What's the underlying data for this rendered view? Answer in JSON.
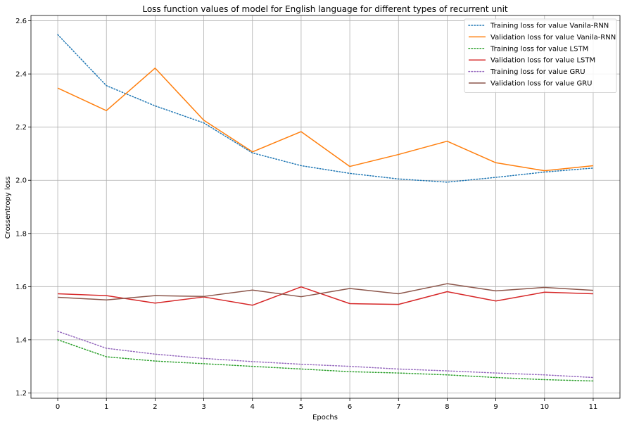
{
  "chart_data": {
    "type": "line",
    "title": "Loss function values of model for English language for different types of recurrent unit",
    "xlabel": "Epochs",
    "ylabel": "Crossentropy loss",
    "x": [
      0,
      1,
      2,
      3,
      4,
      5,
      6,
      7,
      8,
      9,
      10,
      11
    ],
    "xticks": [
      "0",
      "1",
      "2",
      "3",
      "4",
      "5",
      "6",
      "7",
      "8",
      "9",
      "10",
      "11"
    ],
    "yticks": [
      "1.2",
      "1.4",
      "1.6",
      "1.8",
      "2.0",
      "2.2",
      "2.4",
      "2.6"
    ],
    "xlim": [
      -0.55,
      11.55
    ],
    "ylim": [
      1.18,
      2.62
    ],
    "grid": true,
    "legend_position": "top-right",
    "series": [
      {
        "name": "Training loss for value Vanila-RNN",
        "color": "#1f77b4",
        "dash": "dotted",
        "values": [
          2.548,
          2.356,
          2.28,
          2.216,
          2.103,
          2.055,
          2.026,
          2.005,
          1.993,
          2.011,
          2.031,
          2.046
        ]
      },
      {
        "name": "Validation loss for value Vanila-RNN",
        "color": "#ff7f0e",
        "dash": "solid",
        "values": [
          2.347,
          2.262,
          2.422,
          2.226,
          2.107,
          2.183,
          2.052,
          2.097,
          2.147,
          2.066,
          2.036,
          2.055
        ]
      },
      {
        "name": "Training loss for value LSTM",
        "color": "#2ca02c",
        "dash": "dotted",
        "values": [
          1.4,
          1.336,
          1.32,
          1.31,
          1.3,
          1.29,
          1.28,
          1.275,
          1.268,
          1.258,
          1.25,
          1.245
        ]
      },
      {
        "name": "Validation loss for value LSTM",
        "color": "#d62728",
        "dash": "solid",
        "values": [
          1.573,
          1.566,
          1.538,
          1.561,
          1.53,
          1.599,
          1.536,
          1.533,
          1.581,
          1.546,
          1.579,
          1.573
        ]
      },
      {
        "name": "Training loss for value GRU",
        "color": "#9467bd",
        "dash": "dotted",
        "values": [
          1.432,
          1.368,
          1.346,
          1.33,
          1.318,
          1.308,
          1.3,
          1.29,
          1.283,
          1.275,
          1.268,
          1.258
        ]
      },
      {
        "name": "Validation loss for value GRU",
        "color": "#8c564b",
        "dash": "solid",
        "values": [
          1.56,
          1.55,
          1.566,
          1.563,
          1.587,
          1.562,
          1.593,
          1.573,
          1.611,
          1.584,
          1.597,
          1.586
        ]
      }
    ]
  }
}
